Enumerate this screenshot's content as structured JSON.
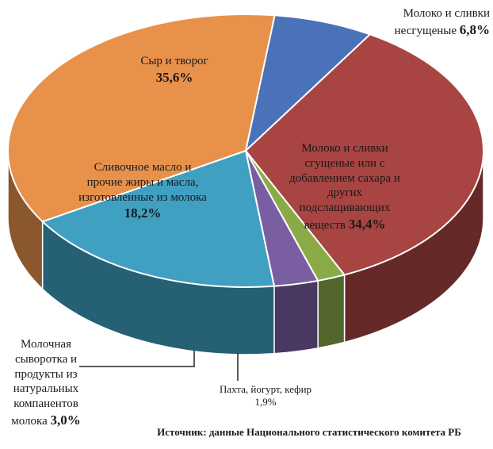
{
  "chart_data": {
    "type": "pie",
    "categories": [
      "Молоко и сливки несгущеные",
      "Молоко и сливки сгущеные или с добавлением сахара и других подслащивающих веществ",
      "Пахта, йогурт, кефир",
      "Молочная сыворотка и продукты из натуральных компанентов молока",
      "Сливочное масло и прочие жиры и масла, изготовленные из молока",
      "Сыр и творог"
    ],
    "values": [
      6.8,
      34.4,
      1.9,
      3.0,
      18.2,
      35.6
    ],
    "value_labels": [
      "6,8%",
      "34,4%",
      "1,9%",
      "3,0%",
      "18,2%",
      "35,6%"
    ],
    "colors": [
      "#4a72b8",
      "#a84442",
      "#8aaa48",
      "#7a5ea2",
      "#3fa0c2",
      "#e8914b"
    ],
    "source": "Источник: данные Национального статистического комитета РБ"
  }
}
